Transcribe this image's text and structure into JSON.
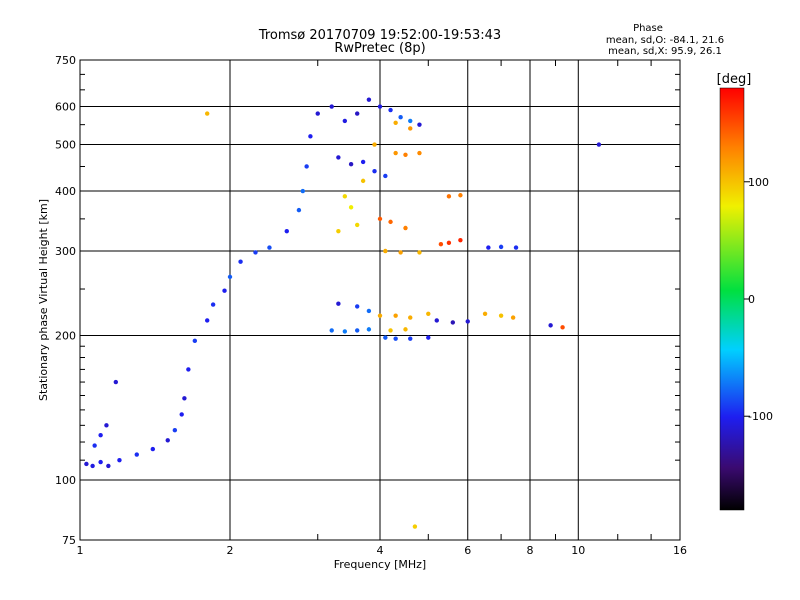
{
  "chart_data": {
    "type": "scatter",
    "title": "Tromsø 20170709 19:52:00-19:53:43",
    "subtitle": "RwPretec (8p)",
    "xlabel": "Frequency [MHz]",
    "ylabel": "Stationary phase Virtual Height [km]",
    "x_scale": "log",
    "y_scale": "log",
    "xlim": [
      1,
      16
    ],
    "ylim": [
      75,
      750
    ],
    "x_ticks": [
      1,
      2,
      4,
      6,
      8,
      10,
      16
    ],
    "x_minor_ticks": [
      3,
      5,
      7,
      9,
      12,
      14
    ],
    "y_ticks": [
      75,
      100,
      200,
      300,
      400,
      500,
      600,
      750
    ],
    "grid": true,
    "stats": {
      "heading": "Phase",
      "line_o": "mean, sd,O: -84.1, 21.6",
      "line_x": "mean, sd,X:  95.9, 26.1"
    },
    "colorbar": {
      "label": "[deg]",
      "range": [
        -180,
        180
      ],
      "ticks": [
        100,
        0,
        -100
      ]
    },
    "series": [
      {
        "values": [
          {
            "x": 1.03,
            "y": 108,
            "c": -110
          },
          {
            "x": 1.06,
            "y": 107,
            "c": -105
          },
          {
            "x": 1.1,
            "y": 109,
            "c": -100
          },
          {
            "x": 1.14,
            "y": 107,
            "c": -110
          },
          {
            "x": 1.2,
            "y": 110,
            "c": -100
          },
          {
            "x": 1.07,
            "y": 118,
            "c": -95
          },
          {
            "x": 1.1,
            "y": 124,
            "c": -100
          },
          {
            "x": 1.13,
            "y": 130,
            "c": -110
          },
          {
            "x": 1.18,
            "y": 160,
            "c": -110
          },
          {
            "x": 1.3,
            "y": 113,
            "c": -95
          },
          {
            "x": 1.4,
            "y": 116,
            "c": -100
          },
          {
            "x": 1.5,
            "y": 121,
            "c": -110
          },
          {
            "x": 1.55,
            "y": 127,
            "c": -90
          },
          {
            "x": 1.6,
            "y": 137,
            "c": -100
          },
          {
            "x": 1.62,
            "y": 148,
            "c": -110
          },
          {
            "x": 1.65,
            "y": 170,
            "c": -100
          },
          {
            "x": 1.7,
            "y": 195,
            "c": -90
          },
          {
            "x": 1.8,
            "y": 215,
            "c": -100
          },
          {
            "x": 1.85,
            "y": 232,
            "c": -95
          },
          {
            "x": 1.95,
            "y": 248,
            "c": -100
          },
          {
            "x": 2.0,
            "y": 265,
            "c": -80
          },
          {
            "x": 2.1,
            "y": 285,
            "c": -95
          },
          {
            "x": 2.25,
            "y": 298,
            "c": -90
          },
          {
            "x": 2.4,
            "y": 305,
            "c": -85
          },
          {
            "x": 2.6,
            "y": 330,
            "c": -100
          },
          {
            "x": 2.75,
            "y": 365,
            "c": -80
          },
          {
            "x": 2.8,
            "y": 400,
            "c": -75
          },
          {
            "x": 2.85,
            "y": 450,
            "c": -90
          },
          {
            "x": 2.9,
            "y": 520,
            "c": -100
          },
          {
            "x": 3.0,
            "y": 580,
            "c": -110
          },
          {
            "x": 3.2,
            "y": 600,
            "c": -110
          },
          {
            "x": 3.4,
            "y": 560,
            "c": -105
          },
          {
            "x": 3.6,
            "y": 580,
            "c": -115
          },
          {
            "x": 3.8,
            "y": 620,
            "c": -110
          },
          {
            "x": 4.0,
            "y": 600,
            "c": -105
          },
          {
            "x": 4.2,
            "y": 590,
            "c": -95
          },
          {
            "x": 4.4,
            "y": 570,
            "c": -80
          },
          {
            "x": 4.6,
            "y": 560,
            "c": -70
          },
          {
            "x": 4.8,
            "y": 550,
            "c": -110
          },
          {
            "x": 3.3,
            "y": 470,
            "c": -110
          },
          {
            "x": 3.5,
            "y": 455,
            "c": -115
          },
          {
            "x": 3.7,
            "y": 460,
            "c": -100
          },
          {
            "x": 3.9,
            "y": 440,
            "c": -95
          },
          {
            "x": 4.1,
            "y": 430,
            "c": -90
          },
          {
            "x": 3.2,
            "y": 205,
            "c": -75
          },
          {
            "x": 3.4,
            "y": 204,
            "c": -70
          },
          {
            "x": 3.6,
            "y": 205,
            "c": -80
          },
          {
            "x": 3.8,
            "y": 206,
            "c": -70
          },
          {
            "x": 4.1,
            "y": 198,
            "c": -80
          },
          {
            "x": 4.3,
            "y": 197,
            "c": -85
          },
          {
            "x": 4.6,
            "y": 197,
            "c": -90
          },
          {
            "x": 5.0,
            "y": 198,
            "c": -100
          },
          {
            "x": 3.3,
            "y": 233,
            "c": -110
          },
          {
            "x": 3.6,
            "y": 230,
            "c": -90
          },
          {
            "x": 3.8,
            "y": 225,
            "c": -75
          },
          {
            "x": 5.2,
            "y": 215,
            "c": -110
          },
          {
            "x": 5.6,
            "y": 213,
            "c": -120
          },
          {
            "x": 6.0,
            "y": 214,
            "c": -110
          },
          {
            "x": 6.6,
            "y": 305,
            "c": -100
          },
          {
            "x": 7.0,
            "y": 306,
            "c": -90
          },
          {
            "x": 7.5,
            "y": 305,
            "c": -95
          },
          {
            "x": 8.8,
            "y": 210,
            "c": -110
          },
          {
            "x": 11.0,
            "y": 500,
            "c": -110
          },
          {
            "x": 3.4,
            "y": 390,
            "c": 90
          },
          {
            "x": 3.5,
            "y": 370,
            "c": 80
          },
          {
            "x": 3.7,
            "y": 420,
            "c": 100
          },
          {
            "x": 3.3,
            "y": 330,
            "c": 95
          },
          {
            "x": 3.6,
            "y": 340,
            "c": 90
          },
          {
            "x": 3.9,
            "y": 500,
            "c": 110
          },
          {
            "x": 4.3,
            "y": 480,
            "c": 120
          },
          {
            "x": 4.5,
            "y": 476,
            "c": 130
          },
          {
            "x": 4.8,
            "y": 480,
            "c": 125
          },
          {
            "x": 4.3,
            "y": 555,
            "c": 110
          },
          {
            "x": 4.6,
            "y": 540,
            "c": 120
          },
          {
            "x": 4.0,
            "y": 350,
            "c": 145
          },
          {
            "x": 4.2,
            "y": 345,
            "c": 140
          },
          {
            "x": 4.5,
            "y": 335,
            "c": 130
          },
          {
            "x": 4.1,
            "y": 300,
            "c": 110
          },
          {
            "x": 4.4,
            "y": 298,
            "c": 115
          },
          {
            "x": 4.8,
            "y": 298,
            "c": 105
          },
          {
            "x": 5.3,
            "y": 310,
            "c": 150
          },
          {
            "x": 5.5,
            "y": 312,
            "c": 160
          },
          {
            "x": 5.8,
            "y": 316,
            "c": 165
          },
          {
            "x": 4.0,
            "y": 220,
            "c": 110
          },
          {
            "x": 4.3,
            "y": 220,
            "c": 115
          },
          {
            "x": 4.6,
            "y": 218,
            "c": 110
          },
          {
            "x": 5.0,
            "y": 222,
            "c": 105
          },
          {
            "x": 4.2,
            "y": 205,
            "c": 100
          },
          {
            "x": 4.5,
            "y": 206,
            "c": 105
          },
          {
            "x": 5.5,
            "y": 390,
            "c": 135
          },
          {
            "x": 5.8,
            "y": 392,
            "c": 130
          },
          {
            "x": 6.5,
            "y": 222,
            "c": 110
          },
          {
            "x": 7.0,
            "y": 220,
            "c": 100
          },
          {
            "x": 7.4,
            "y": 218,
            "c": 115
          },
          {
            "x": 9.3,
            "y": 208,
            "c": 150
          },
          {
            "x": 1.8,
            "y": 580,
            "c": 105
          },
          {
            "x": 4.7,
            "y": 80,
            "c": 95
          }
        ]
      }
    ]
  }
}
